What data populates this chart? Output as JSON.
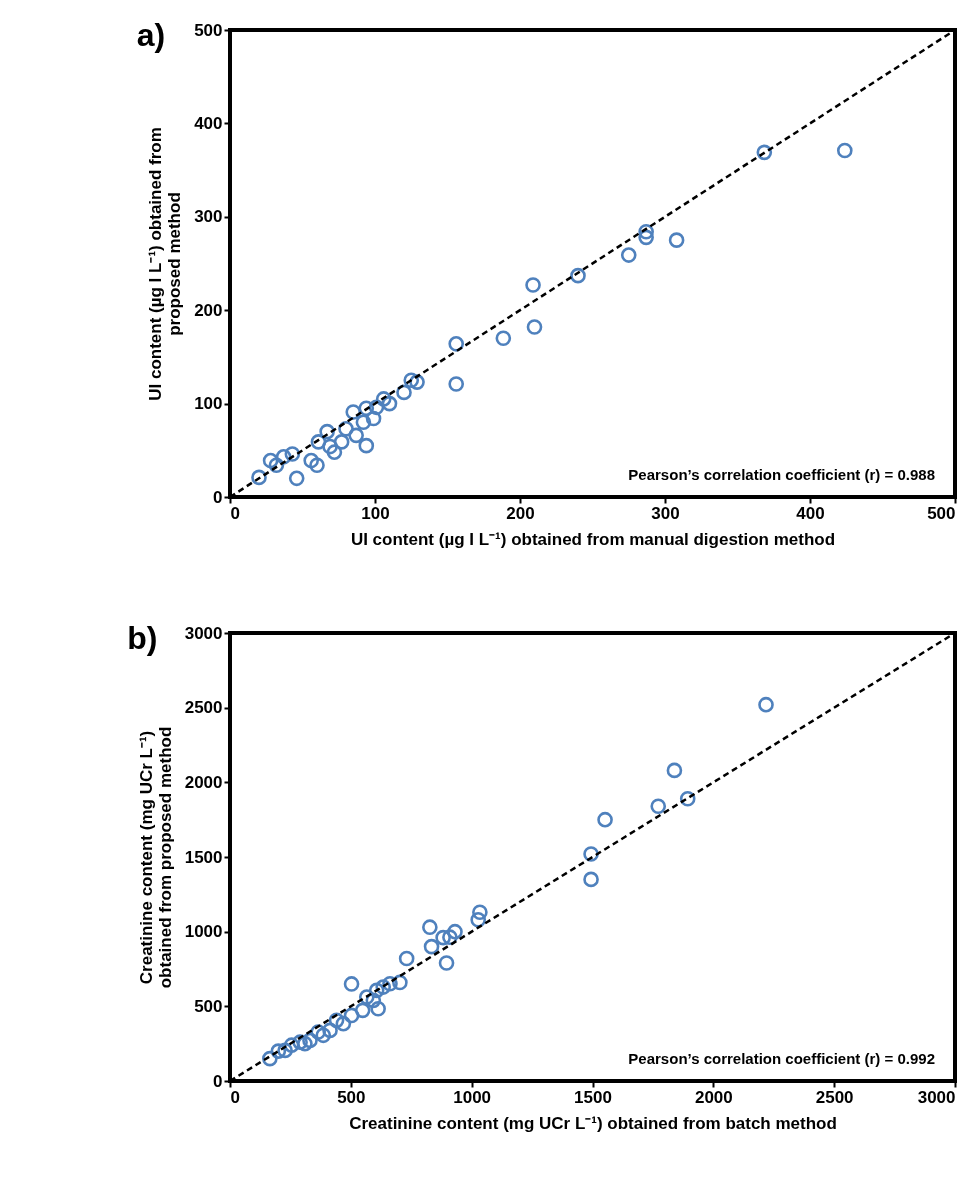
{
  "chart_data": [
    {
      "type": "scatter",
      "title": "a)",
      "xlabel": "UI content (µg I L⁻¹) obtained from manual digestion method",
      "ylabel": "UI content (µg I L⁻¹) obtained from\nproposed method",
      "xlim": [
        0,
        500
      ],
      "ylim": [
        0,
        500
      ],
      "xticks": [
        0,
        100,
        200,
        300,
        400,
        500
      ],
      "yticks": [
        0,
        100,
        200,
        300,
        400,
        500
      ],
      "grid": false,
      "annotations": [
        "Pearson’s correlation coefficient (r) = 0.988"
      ],
      "series": [
        {
          "marker": "circle",
          "color": "#4f81bd",
          "x": [
            20,
            28,
            32,
            37,
            43,
            46,
            56,
            60,
            61,
            67,
            69,
            72,
            77,
            80,
            85,
            87,
            92,
            94,
            94,
            99,
            101,
            106,
            110,
            120,
            125,
            129,
            156,
            156,
            188.5,
            209,
            210,
            240,
            275,
            287,
            287,
            308,
            368.5,
            424
          ],
          "values": [
            21,
            39,
            34,
            43,
            46,
            20,
            39,
            34,
            59,
            70,
            54,
            48,
            59,
            73,
            91,
            66,
            80,
            95,
            55,
            84,
            96,
            105,
            100,
            112,
            125,
            123,
            164,
            121,
            170,
            227,
            182,
            237,
            259,
            284,
            278,
            275,
            369,
            371
          ]
        },
        {
          "type": "line",
          "color": "#000000",
          "line_style": "dashed",
          "x": [
            0,
            500
          ],
          "values": [
            0,
            500
          ]
        }
      ]
    },
    {
      "type": "scatter",
      "title": "b)",
      "xlabel": "Creatinine content (mg UCr L⁻¹) obtained from batch method",
      "ylabel": "Creatinine content (mg UCr L⁻¹)\nobtained from proposed method",
      "xlim": [
        0,
        3000
      ],
      "ylim": [
        0,
        3000
      ],
      "xticks": [
        0,
        500,
        1000,
        1500,
        2000,
        2500,
        3000
      ],
      "yticks": [
        0,
        500,
        1000,
        1500,
        2000,
        2500,
        3000
      ],
      "grid": false,
      "annotations": [
        "Pearson’s correlation coefficient (r) = 0.992"
      ],
      "series": [
        {
          "marker": "circle",
          "color": "#4f81bd",
          "x": [
            165,
            200,
            228,
            255,
            290,
            310,
            331,
            365,
            386,
            414,
            441,
            469,
            503,
            503,
            549,
            566,
            593,
            607,
            613,
            634,
            662,
            703,
            731,
            827,
            834,
            882,
            896,
            910,
            931,
            1027,
            1034,
            1494,
            1494,
            1552,
            1772,
            1839,
            1894,
            2218
          ],
          "values": [
            150,
            200,
            205,
            240,
            260,
            250,
            272,
            328,
            306,
            339,
            406,
            384,
            439,
            650,
            473,
            562,
            540,
            607,
            484,
            629,
            651,
            660,
            820,
            1030,
            900,
            960,
            790,
            963,
            1000,
            1080,
            1130,
            1350,
            1520,
            1750,
            1840,
            2080,
            1890,
            2520
          ]
        },
        {
          "type": "line",
          "color": "#000000",
          "line_style": "dashed",
          "x": [
            0,
            3000
          ],
          "values": [
            0,
            3000
          ]
        }
      ]
    }
  ]
}
